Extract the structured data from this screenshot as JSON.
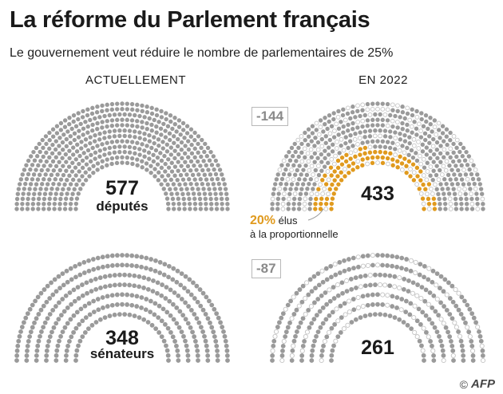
{
  "title": "La réforme du Parlement français",
  "subtitle": "Le gouvernement veut réduire le nombre de parlementaires de 25%",
  "columns": {
    "left": "ACTUELLEMENT",
    "right": "EN 2022"
  },
  "credit": {
    "copyright": "©",
    "logo": "AFP"
  },
  "colors": {
    "seat": "#9a9a9a",
    "removed_seat": "#c4c4c4",
    "proportional_seat": "#e09a1e"
  },
  "chart_data": [
    {
      "type": "hemicycle",
      "column": "ACTUELLEMENT",
      "seats": 577,
      "value_label": "577",
      "unit_label": "députés"
    },
    {
      "type": "hemicycle",
      "column": "EN 2022",
      "seats": 433,
      "removed": 144,
      "delta_label": "-144",
      "value_label": "433",
      "proportional_share": 0.2,
      "annotation": {
        "pct": "20%",
        "line1": "élus",
        "line2": "à la proportionnelle"
      }
    },
    {
      "type": "hemicycle",
      "column": "ACTUELLEMENT",
      "seats": 348,
      "value_label": "348",
      "unit_label": "sénateurs"
    },
    {
      "type": "hemicycle",
      "column": "EN 2022",
      "seats": 261,
      "removed": 87,
      "delta_label": "-87",
      "value_label": "261"
    }
  ]
}
